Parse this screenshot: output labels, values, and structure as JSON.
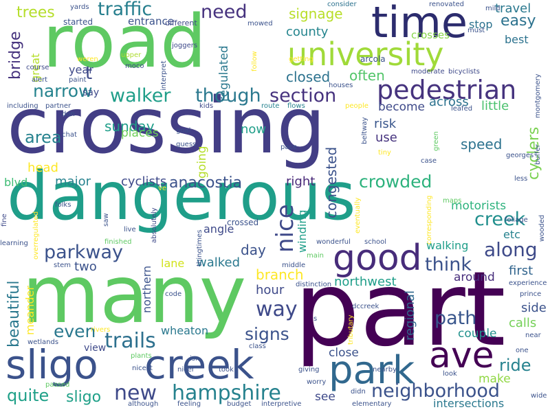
{
  "words": [
    {
      "text": "crossing",
      "color": "#433e85"
    },
    {
      "text": "dangerous",
      "color": "#1f9e89"
    },
    {
      "text": "road",
      "color": "#5ec962"
    },
    {
      "text": "many",
      "color": "#5ec962"
    },
    {
      "text": "part",
      "color": "#440154"
    },
    {
      "text": "sligo",
      "color": "#3b528b"
    },
    {
      "text": "creek",
      "color": "#3b528b"
    },
    {
      "text": "time",
      "color": "#2c2c6e"
    },
    {
      "text": "university",
      "color": "#a0da39"
    },
    {
      "text": "park",
      "color": "#31688e"
    },
    {
      "text": "good",
      "color": "#472c7a"
    },
    {
      "text": "ave",
      "color": "#440154"
    },
    {
      "text": "pedestrian",
      "color": "#46337e"
    },
    {
      "text": "new",
      "color": "#3e4989"
    },
    {
      "text": "hampshire",
      "color": "#26828e"
    },
    {
      "text": "neighborhood",
      "color": "#3b528b"
    },
    {
      "text": "traffic",
      "color": "#277f8e"
    },
    {
      "text": "need",
      "color": "#46327e"
    },
    {
      "text": "trees",
      "color": "#b5de2b"
    },
    {
      "text": "walker",
      "color": "#1f9e89"
    },
    {
      "text": "though",
      "color": "#2a788e"
    },
    {
      "text": "section",
      "color": "#46327e"
    },
    {
      "text": "narrow",
      "color": "#25838e"
    },
    {
      "text": "trails",
      "color": "#2d708e"
    },
    {
      "text": "parkway",
      "color": "#3b528b"
    },
    {
      "text": "crowded",
      "color": "#2db27d"
    },
    {
      "text": "creek",
      "color": "#218f8d"
    },
    {
      "text": "along",
      "color": "#3e4a89"
    },
    {
      "text": "think",
      "color": "#3b528b"
    },
    {
      "text": "path",
      "color": "#39568c"
    },
    {
      "text": "quite",
      "color": "#1fa088"
    },
    {
      "text": "sligo",
      "color": "#1fa088"
    },
    {
      "text": "signs",
      "color": "#3b528b"
    },
    {
      "text": "even",
      "color": "#2a788e"
    },
    {
      "text": "way",
      "color": "#3e4989"
    },
    {
      "text": "anacostia",
      "color": "#3b528b"
    },
    {
      "text": "cyclists",
      "color": "#3e4989"
    },
    {
      "text": "area",
      "color": "#26828e"
    },
    {
      "text": "head",
      "color": "#fde725"
    },
    {
      "text": "easy",
      "color": "#2c728e"
    },
    {
      "text": "travel",
      "color": "#2a788e"
    },
    {
      "text": "signage",
      "color": "#b8de29"
    },
    {
      "text": "county",
      "color": "#25858e"
    },
    {
      "text": "closed",
      "color": "#2c728e"
    },
    {
      "text": "often",
      "color": "#52c569"
    },
    {
      "text": "across",
      "color": "#2c728e"
    },
    {
      "text": "little",
      "color": "#4ac16d"
    },
    {
      "text": "become",
      "color": "#3e4989"
    },
    {
      "text": "risk",
      "color": "#39568c"
    },
    {
      "text": "use",
      "color": "#46337e"
    },
    {
      "text": "speed",
      "color": "#2c728e"
    },
    {
      "text": "right",
      "color": "#482878"
    },
    {
      "text": "sunday",
      "color": "#1f9e89"
    },
    {
      "text": "places",
      "color": "#6ece58"
    },
    {
      "text": "major",
      "color": "#26828e"
    },
    {
      "text": "blvd",
      "color": "#3dbc74"
    },
    {
      "text": "two",
      "color": "#3b528b"
    },
    {
      "text": "walked",
      "color": "#2a788e"
    },
    {
      "text": "lane",
      "color": "#d2e21b"
    },
    {
      "text": "day",
      "color": "#3b528b"
    },
    {
      "text": "hour",
      "color": "#3e4989"
    },
    {
      "text": "branch",
      "color": "#fde725"
    },
    {
      "text": "northwest",
      "color": "#1f9e89"
    },
    {
      "text": "around",
      "color": "#472d7b"
    },
    {
      "text": "first",
      "color": "#32658e"
    },
    {
      "text": "side",
      "color": "#3b528b"
    },
    {
      "text": "calls",
      "color": "#73d056"
    },
    {
      "text": "couple",
      "color": "#21918c"
    },
    {
      "text": "ride",
      "color": "#26828e"
    },
    {
      "text": "make",
      "color": "#90d743"
    },
    {
      "text": "intersections",
      "color": "#2a788e"
    },
    {
      "text": "see",
      "color": "#3e4989"
    },
    {
      "text": "close",
      "color": "#3b528b"
    },
    {
      "text": "motorists",
      "color": "#2db27d"
    },
    {
      "text": "etc",
      "color": "#26828e"
    },
    {
      "text": "walking",
      "color": "#1f9e89"
    },
    {
      "text": "wheaton",
      "color": "#2a788e"
    },
    {
      "text": "view",
      "color": "#3e4989"
    },
    {
      "text": "best",
      "color": "#2c728e"
    },
    {
      "text": "stop",
      "color": "#2c728e"
    },
    {
      "text": "year",
      "color": "#3e4989"
    },
    {
      "text": "say",
      "color": "#3e4989"
    },
    {
      "text": "entrance",
      "color": "#3b528b"
    },
    {
      "text": "started",
      "color": "#3b528b"
    },
    {
      "text": "different",
      "color": "#3e4989"
    },
    {
      "text": "now",
      "color": "#1f9e89"
    },
    {
      "text": "t",
      "color": "#3e4989"
    },
    {
      "text": "crosses",
      "color": "#86d549"
    },
    {
      "text": "angle",
      "color": "#3e4989"
    },
    {
      "text": "bridge",
      "color": "#46337e"
    },
    {
      "text": "great",
      "color": "#b5de2b"
    },
    {
      "text": "beautiful",
      "color": "#2a788e"
    },
    {
      "text": "meander",
      "color": "#fde725"
    },
    {
      "text": "northern",
      "color": "#3b528b"
    },
    {
      "text": "congested",
      "color": "#3b528b"
    },
    {
      "text": "nice",
      "color": "#3e4989"
    },
    {
      "text": "winding",
      "color": "#1f9e89"
    },
    {
      "text": "regulated",
      "color": "#2a788e"
    },
    {
      "text": "going",
      "color": "#b5de2b"
    },
    {
      "text": "regional",
      "color": "#31688e"
    },
    {
      "text": "cyclers",
      "color": "#7ad151"
    },
    {
      "text": "yards",
      "color": "#3b528b"
    },
    {
      "text": "consider",
      "color": "#2c728e"
    },
    {
      "text": "renovated",
      "color": "#3b528b"
    },
    {
      "text": "mild",
      "color": "#3b528b"
    },
    {
      "text": "must",
      "color": "#3b528b"
    },
    {
      "text": "upper",
      "color": "#addc30"
    },
    {
      "text": "moco",
      "color": "#3e4989"
    },
    {
      "text": "joggers",
      "color": "#3e4989"
    },
    {
      "text": "mowed",
      "color": "#3b528b"
    },
    {
      "text": "getting",
      "color": "#fde725"
    },
    {
      "text": "arcola",
      "color": "#3b528b"
    },
    {
      "text": "weren",
      "color": "#fde725"
    },
    {
      "text": "paint",
      "color": "#3b528b"
    },
    {
      "text": "alert",
      "color": "#3b528b"
    },
    {
      "text": "course",
      "color": "#3e4989"
    },
    {
      "text": "interpret",
      "color": "#3b528b"
    },
    {
      "text": "follow",
      "color": "#fde725"
    },
    {
      "text": "houses",
      "color": "#3b528b"
    },
    {
      "text": "moderate",
      "color": "#3e4989"
    },
    {
      "text": "bicyclists",
      "color": "#3e4989"
    },
    {
      "text": "montgomery",
      "color": "#3b528b"
    },
    {
      "text": "including",
      "color": "#3b528b"
    },
    {
      "text": "partner",
      "color": "#3b528b"
    },
    {
      "text": "don",
      "color": "#3b528b"
    },
    {
      "text": "kids",
      "color": "#3e4989"
    },
    {
      "text": "route",
      "color": "#26828e"
    },
    {
      "text": "flows",
      "color": "#26828e"
    },
    {
      "text": "people",
      "color": "#fde725"
    },
    {
      "text": "leafed",
      "color": "#3b528b"
    },
    {
      "text": "chat",
      "color": "#3b528b"
    },
    {
      "text": "goal",
      "color": "#3b528b"
    },
    {
      "text": "guess",
      "color": "#3b528b"
    },
    {
      "text": "pace",
      "color": "#3b528b"
    },
    {
      "text": "beltway",
      "color": "#3b528b"
    },
    {
      "text": "green",
      "color": "#5ec962"
    },
    {
      "text": "tiny",
      "color": "#fde725"
    },
    {
      "text": "case",
      "color": "#3b528b"
    },
    {
      "text": "georges",
      "color": "#3b528b"
    },
    {
      "text": "buffer",
      "color": "#3b528b"
    },
    {
      "text": "less",
      "color": "#3b528b"
    },
    {
      "text": "maps",
      "color": "#5ec962"
    },
    {
      "text": "ve",
      "color": "#fde725"
    },
    {
      "text": "folks",
      "color": "#3b528b"
    },
    {
      "text": "fine",
      "color": "#3e4989"
    },
    {
      "text": "saw",
      "color": "#3b528b"
    },
    {
      "text": "absolutely",
      "color": "#3e4989"
    },
    {
      "text": "live",
      "color": "#3b528b"
    },
    {
      "text": "crossed",
      "color": "#3b528b"
    },
    {
      "text": "eventually",
      "color": "#fde725"
    },
    {
      "text": "corresponding",
      "color": "#fde725"
    },
    {
      "text": "foliage",
      "color": "#3b528b"
    },
    {
      "text": "wooded",
      "color": "#3b528b"
    },
    {
      "text": "learning",
      "color": "#3b528b"
    },
    {
      "text": "finished",
      "color": "#5ec962"
    },
    {
      "text": "wonderful",
      "color": "#3b528b"
    },
    {
      "text": "school",
      "color": "#3b528b"
    },
    {
      "text": "stem",
      "color": "#3b528b"
    },
    {
      "text": "overregulated",
      "color": "#fde725"
    },
    {
      "text": "middle",
      "color": "#3b528b"
    },
    {
      "text": "main",
      "color": "#5ec962"
    },
    {
      "text": "distinction",
      "color": "#3b528b"
    },
    {
      "text": "experience",
      "color": "#3b528b"
    },
    {
      "text": "prince",
      "color": "#3b528b"
    },
    {
      "text": "code",
      "color": "#3b528b"
    },
    {
      "text": "thingtimes",
      "color": "#3b528b"
    },
    {
      "text": "dccreek",
      "color": "#3b528b"
    },
    {
      "text": "s",
      "color": "#3b528b"
    },
    {
      "text": "rivers",
      "color": "#fde725"
    },
    {
      "text": "isn",
      "color": "#3b528b"
    },
    {
      "text": "wetlands",
      "color": "#3b528b"
    },
    {
      "text": "tributary",
      "color": "#fde725"
    },
    {
      "text": "near",
      "color": "#3b528b"
    },
    {
      "text": "nicer",
      "color": "#3b528b"
    },
    {
      "text": "took",
      "color": "#3b528b"
    },
    {
      "text": "plants",
      "color": "#5ec962"
    },
    {
      "text": "class",
      "color": "#3b528b"
    },
    {
      "text": "nearby",
      "color": "#3b528b"
    },
    {
      "text": "one",
      "color": "#3b528b"
    },
    {
      "text": "nicest",
      "color": "#3b528b"
    },
    {
      "text": "giving",
      "color": "#3b528b"
    },
    {
      "text": "worry",
      "color": "#3b528b"
    },
    {
      "text": "look",
      "color": "#3b528b"
    },
    {
      "text": "didn",
      "color": "#3b528b"
    },
    {
      "text": "passed",
      "color": "#5ec962"
    },
    {
      "text": "although",
      "color": "#3b528b"
    },
    {
      "text": "feeling",
      "color": "#3b528b"
    },
    {
      "text": "budget",
      "color": "#3b528b"
    },
    {
      "text": "interpretive",
      "color": "#3b528b"
    },
    {
      "text": "elementary",
      "color": "#3b528b"
    },
    {
      "text": "wide",
      "color": "#3b528b"
    }
  ]
}
